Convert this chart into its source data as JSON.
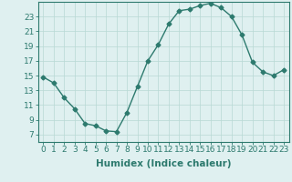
{
  "x": [
    0,
    1,
    2,
    3,
    4,
    5,
    6,
    7,
    8,
    9,
    10,
    11,
    12,
    13,
    14,
    15,
    16,
    17,
    18,
    19,
    20,
    21,
    22,
    23
  ],
  "y": [
    14.8,
    14.0,
    12.0,
    10.5,
    8.5,
    8.2,
    7.5,
    7.4,
    10.0,
    13.5,
    17.0,
    19.2,
    22.0,
    23.8,
    24.0,
    24.5,
    24.8,
    24.2,
    23.0,
    20.5,
    16.8,
    15.5,
    15.0,
    15.8
  ],
  "line_color": "#2d7a6e",
  "marker": "D",
  "marker_size": 2.5,
  "bg_color": "#dff0f0",
  "grid_color": "#b8d8d4",
  "xlabel": "Humidex (Indice chaleur)",
  "xlim": [
    -0.5,
    23.5
  ],
  "ylim": [
    6,
    25
  ],
  "yticks": [
    7,
    9,
    11,
    13,
    15,
    17,
    19,
    21,
    23
  ],
  "xticks": [
    0,
    1,
    2,
    3,
    4,
    5,
    6,
    7,
    8,
    9,
    10,
    11,
    12,
    13,
    14,
    15,
    16,
    17,
    18,
    19,
    20,
    21,
    22,
    23
  ],
  "axis_color": "#2d7a6e",
  "tick_color": "#2d7a6e",
  "label_color": "#2d7a6e",
  "font_size": 6.5
}
